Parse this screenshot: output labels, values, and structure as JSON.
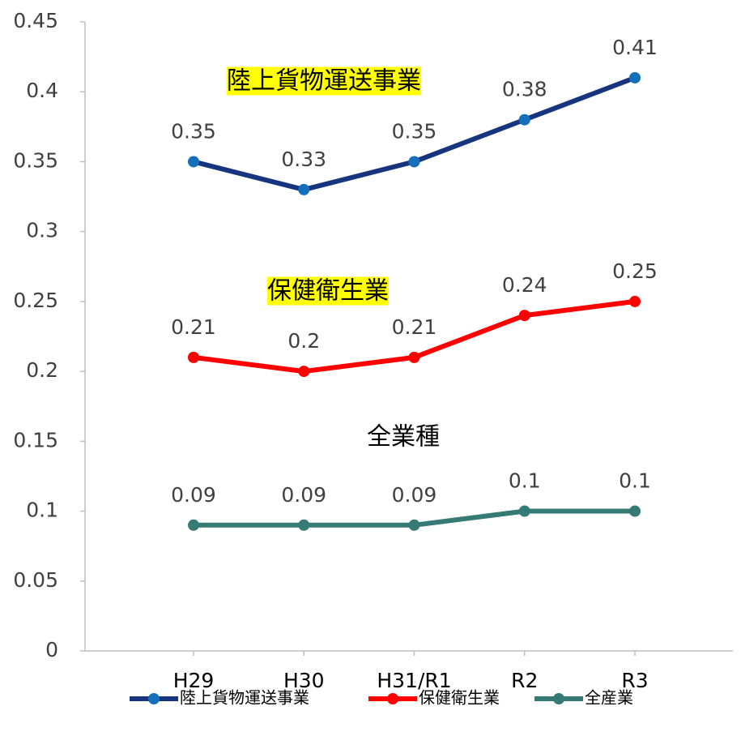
{
  "chart_data": {
    "type": "line",
    "categories": [
      "H29",
      "H30",
      "H31/R1",
      "R2",
      "R3"
    ],
    "series": [
      {
        "name": "陸上貨物運送事業",
        "color": "#17357f",
        "marker_color": "#1470bd",
        "values": [
          0.35,
          0.33,
          0.35,
          0.38,
          0.41
        ]
      },
      {
        "name": "保健衛生業",
        "color": "#ff0000",
        "marker_color": "#ff0000",
        "values": [
          0.21,
          0.2,
          0.21,
          0.24,
          0.25
        ]
      },
      {
        "name": "全産業",
        "color": "#357a74",
        "marker_color": "#357a74",
        "values": [
          0.09,
          0.09,
          0.09,
          0.1,
          0.1
        ]
      }
    ],
    "annotations": [
      {
        "text": "陸上貨物運送事業",
        "highlight": true
      },
      {
        "text": "保健衛生業",
        "highlight": true
      },
      {
        "text": "全業種",
        "highlight": false
      }
    ],
    "highlight_color": "#ffff00",
    "ylim": [
      0,
      0.45
    ],
    "yticks": [
      0,
      0.05,
      0.1,
      0.15,
      0.2,
      0.25,
      0.3,
      0.35,
      0.4,
      0.45
    ],
    "grid": false,
    "legend": "bottom"
  }
}
